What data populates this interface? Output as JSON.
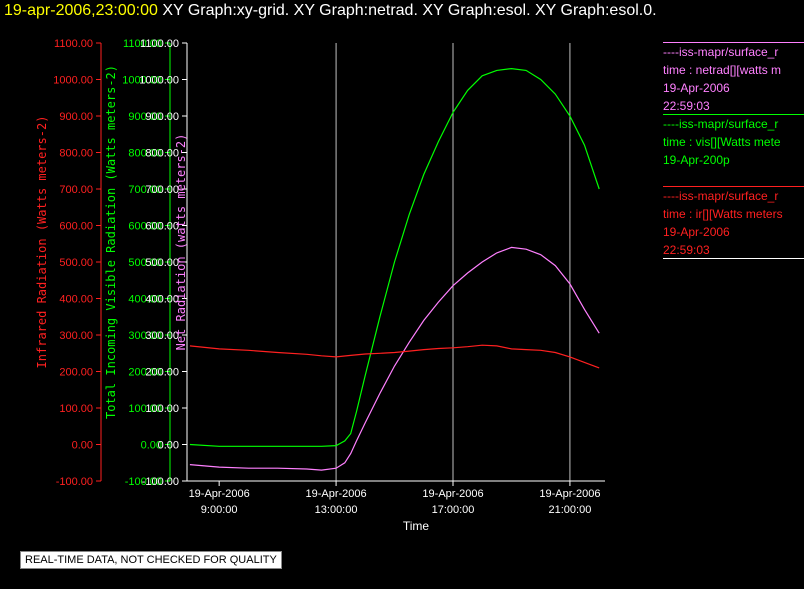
{
  "header": {
    "timestamp": "19-apr-2006,23:00:00",
    "graphs": "XY Graph:xy-grid.  XY Graph:netrad.  XY Graph:esol.  XY Graph:esol.0."
  },
  "colors": {
    "ir": "#ff2020",
    "vis": "#00ff00",
    "net": "#ff80ff",
    "axis": "#ffffff",
    "grid": "#c0c0c0"
  },
  "legend": {
    "netrad": {
      "line1": "----iss-mapr/surface_r",
      "line2": "time : netrad[][watts m",
      "line3": "19-Apr-2006",
      "line4": "22:59:03"
    },
    "esol": {
      "line1": "----iss-mapr/surface_r",
      "line2": "time : vis[][Watts mete",
      "line3": "19-Apr-200p",
      "line4": ""
    },
    "ir": {
      "line1": "----iss-mapr/surface_r",
      "line2": "time : ir[][Watts meters",
      "line3": "19-Apr-2006",
      "line4": "22:59:03"
    }
  },
  "notice": "REAL-TIME DATA, NOT CHECKED FOR QUALITY",
  "chart_data": {
    "type": "line",
    "xlabel": "Time",
    "xlim": [
      7.9,
      22.2
    ],
    "x_ticks": [
      {
        "x": 9,
        "line1": "19-Apr-2006",
        "line2": "9:00:00"
      },
      {
        "x": 13,
        "line1": "19-Apr-2006",
        "line2": "13:00:00"
      },
      {
        "x": 17,
        "line1": "19-Apr-2006",
        "line2": "17:00:00"
      },
      {
        "x": 21,
        "line1": "19-Apr-2006",
        "line2": "21:00:00"
      }
    ],
    "x_gridlines": [
      13,
      17,
      21
    ],
    "ylim": [
      -100,
      1100
    ],
    "y_ticks": [
      -100,
      0,
      100,
      200,
      300,
      400,
      500,
      600,
      700,
      800,
      900,
      1000,
      1100
    ],
    "y_tick_labels": [
      "-100.00",
      "0.00",
      "100.00",
      "200.00",
      "300.00",
      "400.00",
      "500.00",
      "600.00",
      "700.00",
      "800.00",
      "900.00",
      "1000.00",
      "1100.00"
    ],
    "axes": [
      {
        "id": "ir",
        "label": "Infrared Radiation (Watts meters-2)"
      },
      {
        "id": "vis",
        "label": "Total Incoming Visible Radiation (Watts meters-2)"
      },
      {
        "id": "net",
        "label": "Net Radiation (watts meters-2)"
      }
    ],
    "series": [
      {
        "id": "vis",
        "x": [
          8,
          9,
          10,
          11,
          12,
          12.5,
          13,
          13.3,
          13.5,
          13.7,
          14,
          14.5,
          15,
          15.5,
          16,
          16.5,
          17,
          17.5,
          18,
          18.5,
          19,
          19.5,
          20,
          20.5,
          21,
          21.5,
          22
        ],
        "values": [
          0,
          -5,
          -5,
          -5,
          -5,
          -5,
          -3,
          10,
          30,
          90,
          190,
          350,
          500,
          630,
          740,
          830,
          910,
          970,
          1010,
          1025,
          1030,
          1025,
          1000,
          960,
          900,
          820,
          700
        ]
      },
      {
        "id": "net",
        "x": [
          8,
          9,
          10,
          11,
          12,
          12.5,
          13,
          13.3,
          13.5,
          13.7,
          14,
          14.5,
          15,
          15.5,
          16,
          16.5,
          17,
          17.5,
          18,
          18.5,
          19,
          19.5,
          20,
          20.5,
          21,
          21.5,
          22
        ],
        "values": [
          -55,
          -62,
          -65,
          -65,
          -67,
          -70,
          -65,
          -50,
          -25,
          10,
          60,
          140,
          215,
          280,
          340,
          390,
          435,
          470,
          500,
          525,
          540,
          535,
          520,
          490,
          440,
          370,
          305
        ]
      },
      {
        "id": "ir",
        "x": [
          8,
          9,
          10,
          11,
          12,
          12.5,
          13,
          13.5,
          14,
          14.5,
          15,
          15.5,
          16,
          16.5,
          17,
          17.5,
          18,
          18.5,
          19,
          19.5,
          20,
          20.5,
          21,
          21.5,
          22
        ],
        "values": [
          270,
          262,
          258,
          252,
          247,
          243,
          240,
          244,
          248,
          250,
          252,
          256,
          260,
          263,
          265,
          268,
          272,
          270,
          262,
          260,
          258,
          252,
          240,
          225,
          210
        ]
      }
    ]
  }
}
